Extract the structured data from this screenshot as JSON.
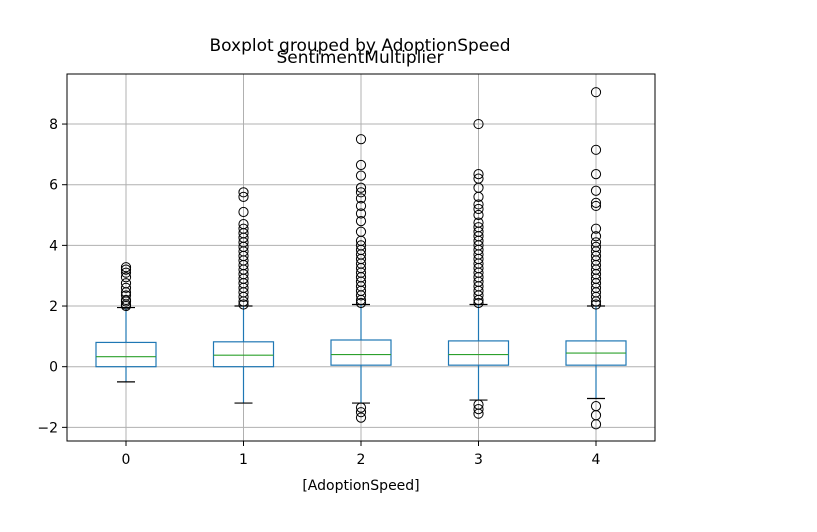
{
  "chart_data": {
    "type": "boxplot",
    "title": "Boxplot grouped by AdoptionSpeed",
    "subtitle": "SentimentMultiplier",
    "xlabel": "[AdoptionSpeed]",
    "ylabel": "",
    "categories": [
      "0",
      "1",
      "2",
      "3",
      "4"
    ],
    "y_ticks": [
      -2,
      0,
      2,
      4,
      6,
      8
    ],
    "y_tick_labels": [
      "−2",
      "0",
      "2",
      "4",
      "6",
      "8"
    ],
    "ylim": [
      -2.45,
      9.65
    ],
    "grid": true,
    "colors": {
      "box": "#1f77b4",
      "median": "#2ca02c",
      "whisker": "#1f77b4",
      "flier": "#000000",
      "grid": "#b0b0b0"
    },
    "boxes": [
      {
        "category": "0",
        "whislo": -0.5,
        "q1": 0.0,
        "med": 0.33,
        "q3": 0.8,
        "whishi": 1.95,
        "fliers": [
          2.0,
          2.05,
          2.15,
          2.2,
          2.35,
          2.45,
          2.6,
          2.75,
          2.95,
          3.1,
          3.2,
          3.28
        ]
      },
      {
        "category": "1",
        "whislo": -1.2,
        "q1": 0.0,
        "med": 0.38,
        "q3": 0.82,
        "whishi": 2.0,
        "fliers": [
          2.05,
          2.15,
          2.3,
          2.45,
          2.6,
          2.75,
          2.9,
          3.05,
          3.2,
          3.35,
          3.5,
          3.65,
          3.8,
          3.95,
          4.1,
          4.25,
          4.4,
          4.55,
          4.7,
          5.1,
          5.6,
          5.75
        ]
      },
      {
        "category": "2",
        "whislo": -1.2,
        "q1": 0.05,
        "med": 0.4,
        "q3": 0.88,
        "whishi": 2.05,
        "fliers": [
          -1.35,
          -1.5,
          -1.68,
          2.1,
          2.2,
          2.35,
          2.5,
          2.65,
          2.8,
          2.95,
          3.1,
          3.25,
          3.4,
          3.55,
          3.7,
          3.85,
          4.0,
          4.15,
          4.45,
          4.8,
          5.05,
          5.3,
          5.55,
          5.75,
          5.9,
          6.3,
          6.65,
          7.5
        ]
      },
      {
        "category": "3",
        "whislo": -1.1,
        "q1": 0.05,
        "med": 0.4,
        "q3": 0.85,
        "whishi": 2.05,
        "fliers": [
          -1.25,
          -1.4,
          -1.55,
          2.1,
          2.2,
          2.35,
          2.5,
          2.65,
          2.8,
          2.95,
          3.1,
          3.25,
          3.4,
          3.55,
          3.7,
          3.85,
          4.0,
          4.15,
          4.3,
          4.45,
          4.6,
          4.75,
          5.0,
          5.2,
          5.35,
          5.6,
          5.9,
          6.2,
          6.35,
          8.0
        ]
      },
      {
        "category": "4",
        "whislo": -1.05,
        "q1": 0.05,
        "med": 0.45,
        "q3": 0.85,
        "whishi": 2.0,
        "fliers": [
          -1.3,
          -1.6,
          -1.9,
          2.05,
          2.15,
          2.3,
          2.45,
          2.6,
          2.75,
          2.9,
          3.05,
          3.2,
          3.35,
          3.5,
          3.65,
          3.8,
          3.95,
          4.1,
          4.3,
          4.55,
          5.3,
          5.4,
          5.8,
          6.35,
          7.15,
          9.05
        ]
      }
    ]
  }
}
